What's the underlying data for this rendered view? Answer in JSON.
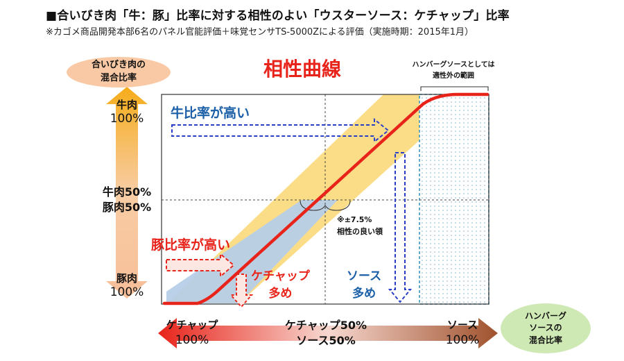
{
  "header": {
    "title": "■合いびき肉「牛：豚」比率に対する相性のよい「ウスターソース：ケチャップ」比率",
    "subtitle": "※カゴメ商品開発本部6名のパネル官能評価＋味覚センサTS-5000Zによる評価（実施時期：2015年1月）"
  },
  "chart_title": "相性曲線",
  "y_axis": {
    "badge_line1": "合いびき肉の",
    "badge_line2": "混合比率",
    "top_line1": "牛肉",
    "top_line2": "100%",
    "mid_line1": "牛肉50%",
    "mid_line2": "豚肉50%",
    "bottom_line1": "豚肉",
    "bottom_line2": "100%"
  },
  "x_axis": {
    "badge_line1": "ハンバーグ",
    "badge_line2": "ソースの",
    "badge_line3": "混合比率",
    "left_line1": "ケチャップ",
    "left_line2": "100%",
    "mid_line1": "ケチャップ50%",
    "mid_line2": "ソース50%",
    "right_line1": "ソース",
    "right_line2": "100%"
  },
  "annotations": {
    "beef_high": "牛比率が高い",
    "pork_high": "豚比率が高い",
    "ketchup_more_line1": "ケチャップ",
    "ketchup_more_line2": "多め",
    "sauce_more_line1": "ソース",
    "sauce_more_line2": "多め",
    "tolerance_line1": "※±7.5%",
    "tolerance_line2": "相性の良い領",
    "unsuitable_line1": "ハンバーグソースとしては",
    "unsuitable_line2": "適性外の範囲"
  },
  "colors": {
    "curve": "#e8231a",
    "band_yellow": "#fbd97a",
    "band_blue": "#b7cde8",
    "blue_text": "#1a5fa8",
    "red_text": "#e8231a",
    "dashed_blue": "#2a3fc8",
    "y_gradient_top": "#f5a623",
    "y_gradient_bottom": "#f6b78e",
    "x_gradient_left": "#e8231a",
    "x_gradient_right": "#a0522d",
    "badge_orange": "#f8c9a4",
    "badge_green": "#cfe9b5"
  }
}
